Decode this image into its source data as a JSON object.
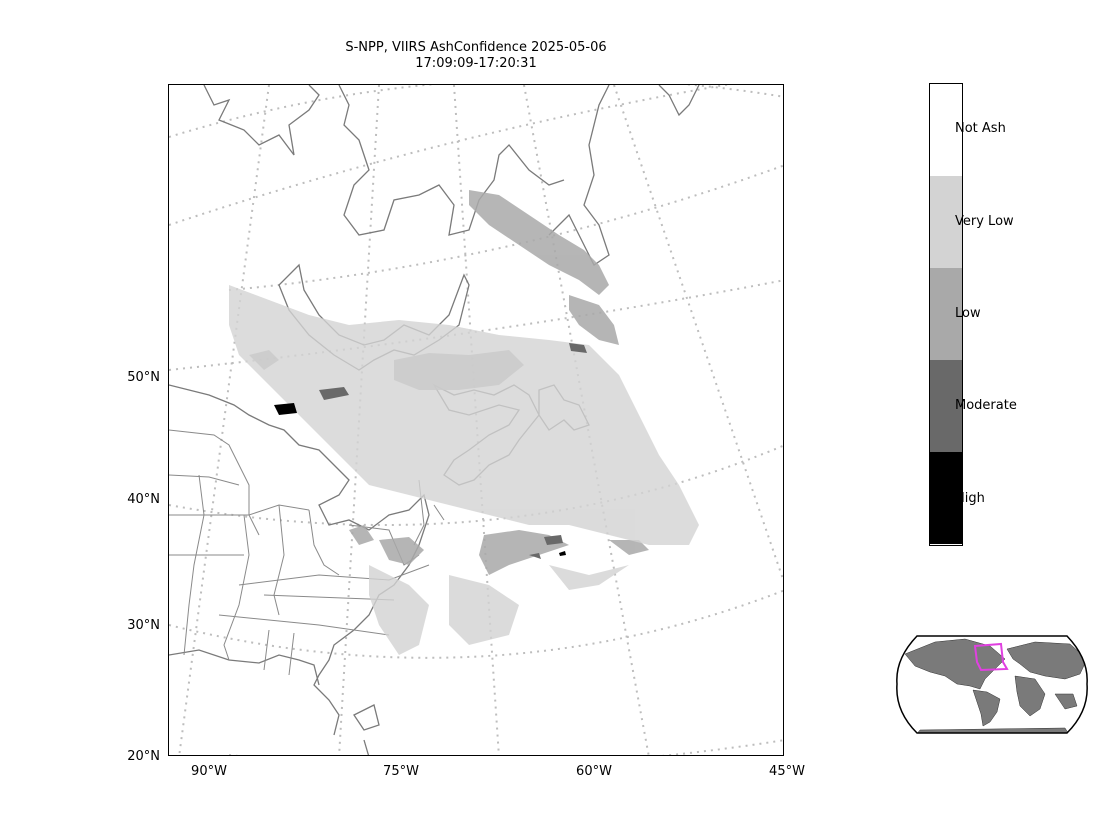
{
  "title": {
    "line1": "S-NPP, VIIRS AshConfidence 2025-05-06",
    "line2": "17:09:09-17:20:31"
  },
  "axes": {
    "lat_labels": [
      "50°N",
      "40°N",
      "30°N",
      "20°N"
    ],
    "lon_labels": [
      "90°W",
      "75°W",
      "60°W",
      "45°W"
    ]
  },
  "legend": {
    "categories": [
      {
        "label": "Not Ash",
        "color": "#ffffff"
      },
      {
        "label": "Very Low",
        "color": "#d3d3d3"
      },
      {
        "label": "Low",
        "color": "#a9a9a9"
      },
      {
        "label": "Moderate",
        "color": "#696969"
      },
      {
        "label": "High",
        "color": "#000000"
      }
    ]
  },
  "colors": {
    "coastline": "#7a7a7a",
    "graticule": "#bdbdbd",
    "inset_land": "#7a7a7a",
    "inset_highlight": "#e040e0"
  }
}
